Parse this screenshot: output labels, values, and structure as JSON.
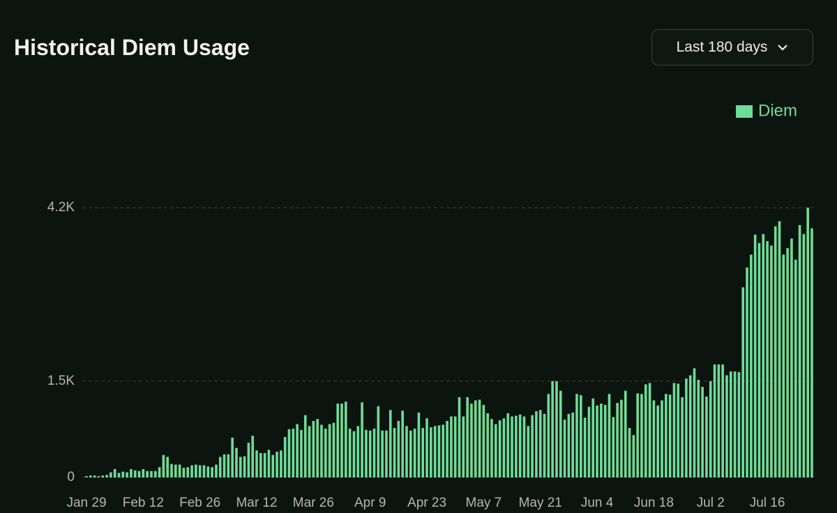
{
  "header": {
    "title": "Historical Diem Usage",
    "range_select": "Last 180 days"
  },
  "chart_data": {
    "type": "bar",
    "categories": [
      "Jan 29",
      null,
      null,
      null,
      null,
      null,
      null,
      null,
      null,
      null,
      null,
      null,
      null,
      null,
      "Feb 12",
      null,
      null,
      null,
      null,
      null,
      null,
      null,
      null,
      null,
      null,
      null,
      null,
      null,
      "Feb 26",
      null,
      null,
      null,
      null,
      null,
      null,
      null,
      null,
      null,
      null,
      null,
      null,
      null,
      "Mar 12",
      null,
      null,
      null,
      null,
      null,
      null,
      null,
      null,
      null,
      null,
      null,
      null,
      null,
      "Mar 26",
      null,
      null,
      null,
      null,
      null,
      null,
      null,
      null,
      null,
      null,
      null,
      null,
      null,
      "Apr 9",
      null,
      null,
      null,
      null,
      null,
      null,
      null,
      null,
      null,
      null,
      null,
      null,
      null,
      "Apr 23",
      null,
      null,
      null,
      null,
      null,
      null,
      null,
      null,
      null,
      null,
      null,
      null,
      null,
      "May 7",
      null,
      null,
      null,
      null,
      null,
      null,
      null,
      null,
      null,
      null,
      null,
      null,
      null,
      "May 21",
      null,
      null,
      null,
      null,
      null,
      null,
      null,
      null,
      null,
      null,
      null,
      null,
      null,
      "Jun 4",
      null,
      null,
      null,
      null,
      null,
      null,
      null,
      null,
      null,
      null,
      null,
      null,
      null,
      "Jun 18",
      null,
      null,
      null,
      null,
      null,
      null,
      null,
      null,
      null,
      null,
      null,
      null,
      null,
      "Jul 2",
      null,
      null,
      null,
      null,
      null,
      null,
      null,
      null,
      null,
      null,
      null,
      null,
      null,
      "Jul 16",
      null,
      null,
      null,
      null,
      null,
      null,
      null,
      null,
      null,
      null,
      null
    ],
    "series": [
      {
        "name": "Diem",
        "color": "#6fdc98",
        "values": [
          20,
          30,
          30,
          20,
          30,
          40,
          80,
          130,
          70,
          90,
          80,
          130,
          110,
          100,
          130,
          100,
          100,
          100,
          160,
          350,
          320,
          210,
          200,
          200,
          150,
          160,
          190,
          200,
          190,
          190,
          170,
          160,
          200,
          320,
          360,
          360,
          620,
          460,
          320,
          330,
          540,
          650,
          420,
          380,
          380,
          430,
          350,
          400,
          420,
          630,
          750,
          760,
          830,
          740,
          970,
          800,
          880,
          910,
          820,
          760,
          830,
          850,
          1150,
          1150,
          1180,
          760,
          720,
          800,
          1170,
          740,
          730,
          760,
          1110,
          730,
          730,
          1050,
          770,
          880,
          1040,
          800,
          730,
          760,
          1010,
          770,
          920,
          780,
          800,
          810,
          820,
          880,
          950,
          950,
          1250,
          950,
          1250,
          1150,
          1200,
          1210,
          1130,
          1000,
          910,
          830,
          890,
          920,
          1000,
          950,
          960,
          980,
          950,
          800,
          970,
          1030,
          1050,
          990,
          1300,
          1500,
          1500,
          1350,
          900,
          990,
          1010,
          1300,
          1280,
          930,
          1100,
          1230,
          1120,
          1150,
          1130,
          1300,
          940,
          1160,
          1210,
          1350,
          770,
          660,
          1310,
          1300,
          1450,
          1470,
          1200,
          1120,
          1200,
          1300,
          1290,
          1470,
          1460,
          1250,
          1540,
          1590,
          1700,
          1520,
          1410,
          1260,
          1500,
          1760,
          1760,
          1760,
          1590,
          1650,
          1650,
          1640,
          2960,
          3270,
          3470,
          3780,
          3650,
          3790,
          3680,
          3610,
          3910,
          3990,
          3470,
          3570,
          3720,
          3390,
          3930,
          3790,
          4200,
          3880
        ]
      }
    ],
    "ylim": [
      0,
      4200
    ],
    "yticks": [
      0,
      {
        "value": 1500,
        "label": "1.5K"
      },
      {
        "value": 4200,
        "label": "4.2K"
      }
    ],
    "grid": true,
    "legend": "top-right"
  }
}
